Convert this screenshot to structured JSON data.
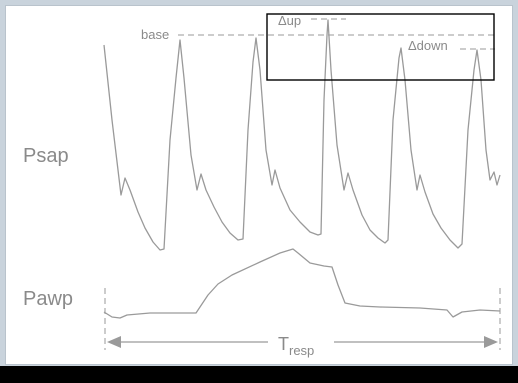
{
  "labels": {
    "psap": "Psap",
    "pawp": "Pawp",
    "base": "base",
    "delta_up": "Δup",
    "delta_down": "Δdown",
    "t_resp_main": "T",
    "t_resp_sub": "resp"
  },
  "colors": {
    "trace": "#9a9a9a",
    "text": "#8a8a8a",
    "box": "#000000",
    "background": "#c9d3dc",
    "panel": "#ffffff",
    "bar": "#000000"
  }
}
